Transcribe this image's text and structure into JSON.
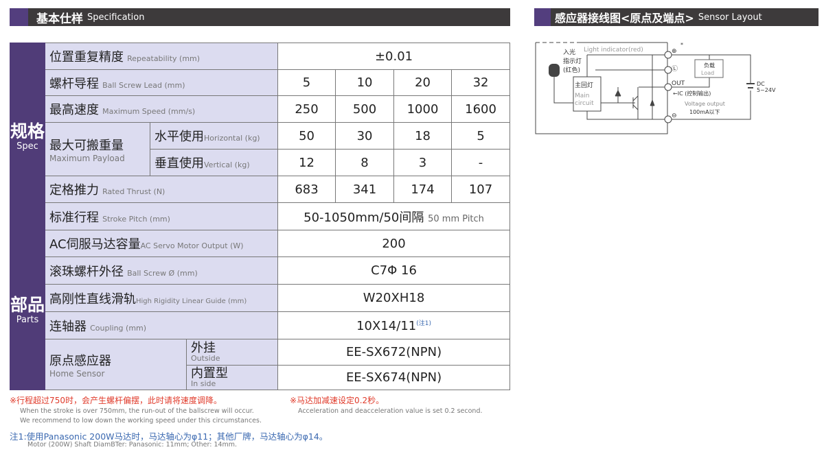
{
  "spec_header": {
    "zh": "基本仕样",
    "en": "Specification"
  },
  "sensor_header": {
    "zh": "感应器接线图<原点及端点>",
    "en": "Sensor Layout"
  },
  "colors": {
    "accent": "#503c78",
    "header_bg": "#3d3a3b",
    "label_bg": "#dcdcf0",
    "note_red": "#e03a2a",
    "note_blue": "#3a68b0"
  },
  "groups": {
    "spec": {
      "zh": "规格",
      "en": "Spec"
    },
    "parts": {
      "zh": "部品",
      "en": "Parts"
    }
  },
  "rows": {
    "repeatability": {
      "zh": "位置重复精度",
      "en": "Repeatability (mm)",
      "value": "±0.01"
    },
    "lead": {
      "zh": "螺杆导程",
      "en": "Ball Screw Lead (mm)",
      "values": [
        "5",
        "10",
        "20",
        "32"
      ]
    },
    "speed": {
      "zh": "最高速度",
      "en": "Maximum Speed (mm/s)",
      "values": [
        "250",
        "500",
        "1000",
        "1600"
      ]
    },
    "payload": {
      "zh": "最大可搬重量",
      "en": "Maximum Payload",
      "horizontal": {
        "zh": "水平使用",
        "en": "Horizontal (kg)",
        "values": [
          "50",
          "30",
          "18",
          "5"
        ]
      },
      "vertical": {
        "zh": "垂直使用",
        "en": "Vertical (kg)",
        "values": [
          "12",
          "8",
          "3",
          "-"
        ]
      }
    },
    "thrust": {
      "zh": "定格推力",
      "en": "Rated Thrust (N)",
      "values": [
        "683",
        "341",
        "174",
        "107"
      ]
    },
    "stroke": {
      "zh": "标准行程",
      "en": "Stroke Pitch (mm)",
      "value": "50-1050mm/50间隔",
      "value_en": "50 mm Pitch"
    },
    "motor": {
      "zh": "AC伺服马达容量",
      "en": "AC Servo Motor Output (W)",
      "value": "200"
    },
    "screw_dia": {
      "zh": "滚珠螺杆外径",
      "en": "Ball Screw Ø (mm)",
      "value": "C7Φ 16"
    },
    "guide": {
      "zh": "高刚性直线滑轨",
      "en": "High Rigidity Linear Guide (mm)",
      "value": "W20XH18"
    },
    "coupling": {
      "zh": "连轴器",
      "en": "Coupling (mm)",
      "value": "10X14/11",
      "note": "(注1)"
    },
    "home": {
      "zh": "原点感应器",
      "en": "Home Sensor",
      "outside": {
        "zh": "外挂",
        "en": "Outside",
        "value": "EE-SX672(NPN)"
      },
      "inside": {
        "zh": "内置型",
        "en": "In side",
        "value": "EE-SX674(NPN)"
      }
    }
  },
  "notes": {
    "n1_zh": "※行程超过750时，会产生螺杆偏摆，此时请将速度调降。",
    "n1_en1": "When the stroke is over 750mm, the run-out of the ballscrew will occur.",
    "n1_en2": "We recommend to low down the working speed under this circumstances.",
    "n2_zh": "※马达加减速设定0.2秒。",
    "n2_en": "Acceleration and deacceleration value is set 0.2 second.",
    "n3_zh": "注1:使用Panasonic 200W马达时，马达轴心为φ11；其他厂牌，马达轴心为φ14。",
    "n3_en": "Motor (200W) Shaft DiamBTer: Panasonic: 11mm; Other: 14mm."
  },
  "diagram": {
    "light_indicator": "Light indicator(red)",
    "led_zh1": "入光",
    "led_zh2": "指示灯",
    "led_zh3": "(红色)",
    "main_zh": "主回灯",
    "main_en1": "Main",
    "main_en2": "circuit",
    "plus": "⊕",
    "star": "*",
    "load_term": "Ⓛ",
    "minus": "⊖",
    "out": "OUT",
    "load_zh": "负载",
    "load_en": "Load",
    "ic": "←IC (控制输出)",
    "voltage_output": "Voltage output",
    "current": "100mA以下",
    "dc": "DC",
    "dc_range": "5~24V"
  }
}
